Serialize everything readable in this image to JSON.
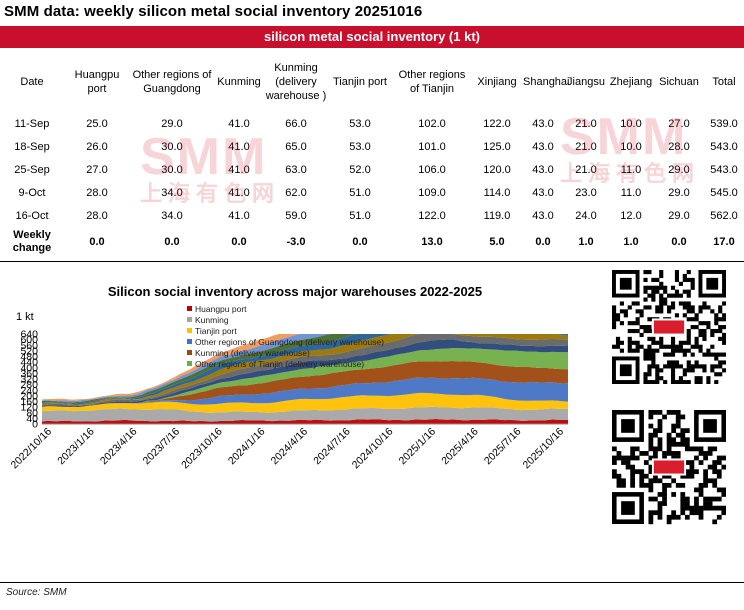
{
  "title": "SMM data:  weekly silicon metal social inventory 20251016",
  "table": {
    "caption": "silicon metal social inventory (1 kt)",
    "headers": [
      "Date",
      "Huangpu port",
      "Other regions of Guangdong",
      "Kunming",
      "Kunming (delivery warehouse )",
      "Tianjin port",
      "Other regions of Tianjin",
      "Xinjiang",
      "Shanghai",
      "Jiangsu",
      "Zhejiang",
      "Sichuan",
      "Total"
    ],
    "rows": [
      [
        "11-Sep",
        "25.0",
        "29.0",
        "41.0",
        "66.0",
        "53.0",
        "102.0",
        "122.0",
        "43.0",
        "21.0",
        "10.0",
        "27.0",
        "539.0"
      ],
      [
        "18-Sep",
        "26.0",
        "30.0",
        "41.0",
        "65.0",
        "53.0",
        "101.0",
        "125.0",
        "43.0",
        "21.0",
        "10.0",
        "28.0",
        "543.0"
      ],
      [
        "25-Sep",
        "27.0",
        "30.0",
        "41.0",
        "63.0",
        "52.0",
        "106.0",
        "120.0",
        "43.0",
        "21.0",
        "11.0",
        "29.0",
        "543.0"
      ],
      [
        "9-Oct",
        "28.0",
        "34.0",
        "41.0",
        "62.0",
        "51.0",
        "109.0",
        "114.0",
        "43.0",
        "23.0",
        "11.0",
        "29.0",
        "545.0"
      ],
      [
        "16-Oct",
        "28.0",
        "34.0",
        "41.0",
        "59.0",
        "51.0",
        "122.0",
        "119.0",
        "43.0",
        "24.0",
        "12.0",
        "29.0",
        "562.0"
      ]
    ],
    "change_label": "Weekly change",
    "change": [
      "0.0",
      "0.0",
      "0.0",
      "-3.0",
      "0.0",
      "13.0",
      "5.0",
      "0.0",
      "1.0",
      "1.0",
      "0.0",
      "17.0"
    ]
  },
  "watermark": {
    "brand": "SMM",
    "cn": "上海有色网"
  },
  "source": "Source:  SMM",
  "chart_data": {
    "type": "area",
    "stacked": true,
    "title": "Silicon social inventory across major warehouses 2022-2025",
    "unit_label": "1 kt",
    "ylim": [
      0,
      640
    ],
    "yticks": [
      0,
      40,
      80,
      120,
      160,
      200,
      240,
      280,
      320,
      360,
      400,
      440,
      480,
      520,
      560,
      600,
      640
    ],
    "ytick_labels": [
      "0",
      "40",
      "80",
      "120",
      "160",
      "200",
      "240",
      "280",
      "320",
      "360",
      "400",
      "440",
      "480",
      "520",
      "560",
      "600",
      "640"
    ],
    "xticks": [
      "2022/10/16",
      "2023/1/16",
      "2023/4/16",
      "2023/7/16",
      "2023/10/16",
      "2024/1/16",
      "2024/4/16",
      "2024/7/16",
      "2024/10/16",
      "2025/1/16",
      "2025/4/16",
      "2025/7/16",
      "2025/10/16"
    ],
    "x": [
      "2022/10",
      "2022/12",
      "2023/2",
      "2023/4",
      "2023/6",
      "2023/8",
      "2023/10",
      "2023/12",
      "2024/2",
      "2024/4",
      "2024/6",
      "2024/8",
      "2024/10",
      "2024/12",
      "2025/2",
      "2025/4",
      "2025/6",
      "2025/8",
      "2025/10"
    ],
    "legend": [
      "Huangpu port",
      "Kunming",
      "Tianjin port",
      "Other regions of Guangdong (delivery warehouse)",
      "Kunming (delivery warehouse)",
      "Other regions of Tianjin (delivery warehouse)"
    ],
    "series": [
      {
        "name": "Huangpu port",
        "color": "#c00000",
        "values": [
          18,
          20,
          22,
          25,
          22,
          20,
          22,
          24,
          25,
          26,
          28,
          30,
          30,
          30,
          32,
          30,
          28,
          26,
          28
        ]
      },
      {
        "name": "Kunming",
        "color": "#a5a5a5",
        "values": [
          70,
          75,
          80,
          80,
          85,
          70,
          62,
          60,
          62,
          68,
          75,
          78,
          82,
          85,
          88,
          85,
          80,
          75,
          80
        ]
      },
      {
        "name": "Tianjin port",
        "color": "#ffc000",
        "values": [
          30,
          30,
          35,
          45,
          50,
          55,
          60,
          65,
          70,
          80,
          85,
          90,
          95,
          100,
          95,
          85,
          70,
          60,
          55
        ]
      },
      {
        "name": "Other regions of Guangdong (delivery warehouse)",
        "color": "#4472c4",
        "values": [
          0,
          0,
          0,
          0,
          5,
          25,
          50,
          60,
          70,
          75,
          80,
          90,
          100,
          110,
          115,
          120,
          125,
          130,
          130
        ]
      },
      {
        "name": "Kunming (delivery warehouse)",
        "color": "#9e480e",
        "values": [
          0,
          0,
          0,
          0,
          5,
          40,
          60,
          70,
          80,
          90,
          95,
          100,
          110,
          120,
          120,
          115,
          110,
          105,
          100
        ]
      },
      {
        "name": "Other regions of Tianjin (delivery warehouse)",
        "color": "#70ad47",
        "values": [
          0,
          0,
          0,
          0,
          5,
          20,
          35,
          45,
          50,
          55,
          60,
          60,
          70,
          80,
          90,
          100,
          110,
          115,
          120
        ]
      }
    ],
    "other_series_colors": [
      "#264478",
      "#636363",
      "#997300",
      "#255e91",
      "#43682b",
      "#698ed0",
      "#f1975a"
    ],
    "other_series_values": [
      10,
      10,
      10,
      12,
      20,
      30,
      40,
      45,
      50,
      55,
      60,
      62,
      65,
      70,
      70,
      65,
      60,
      55,
      50
    ]
  }
}
